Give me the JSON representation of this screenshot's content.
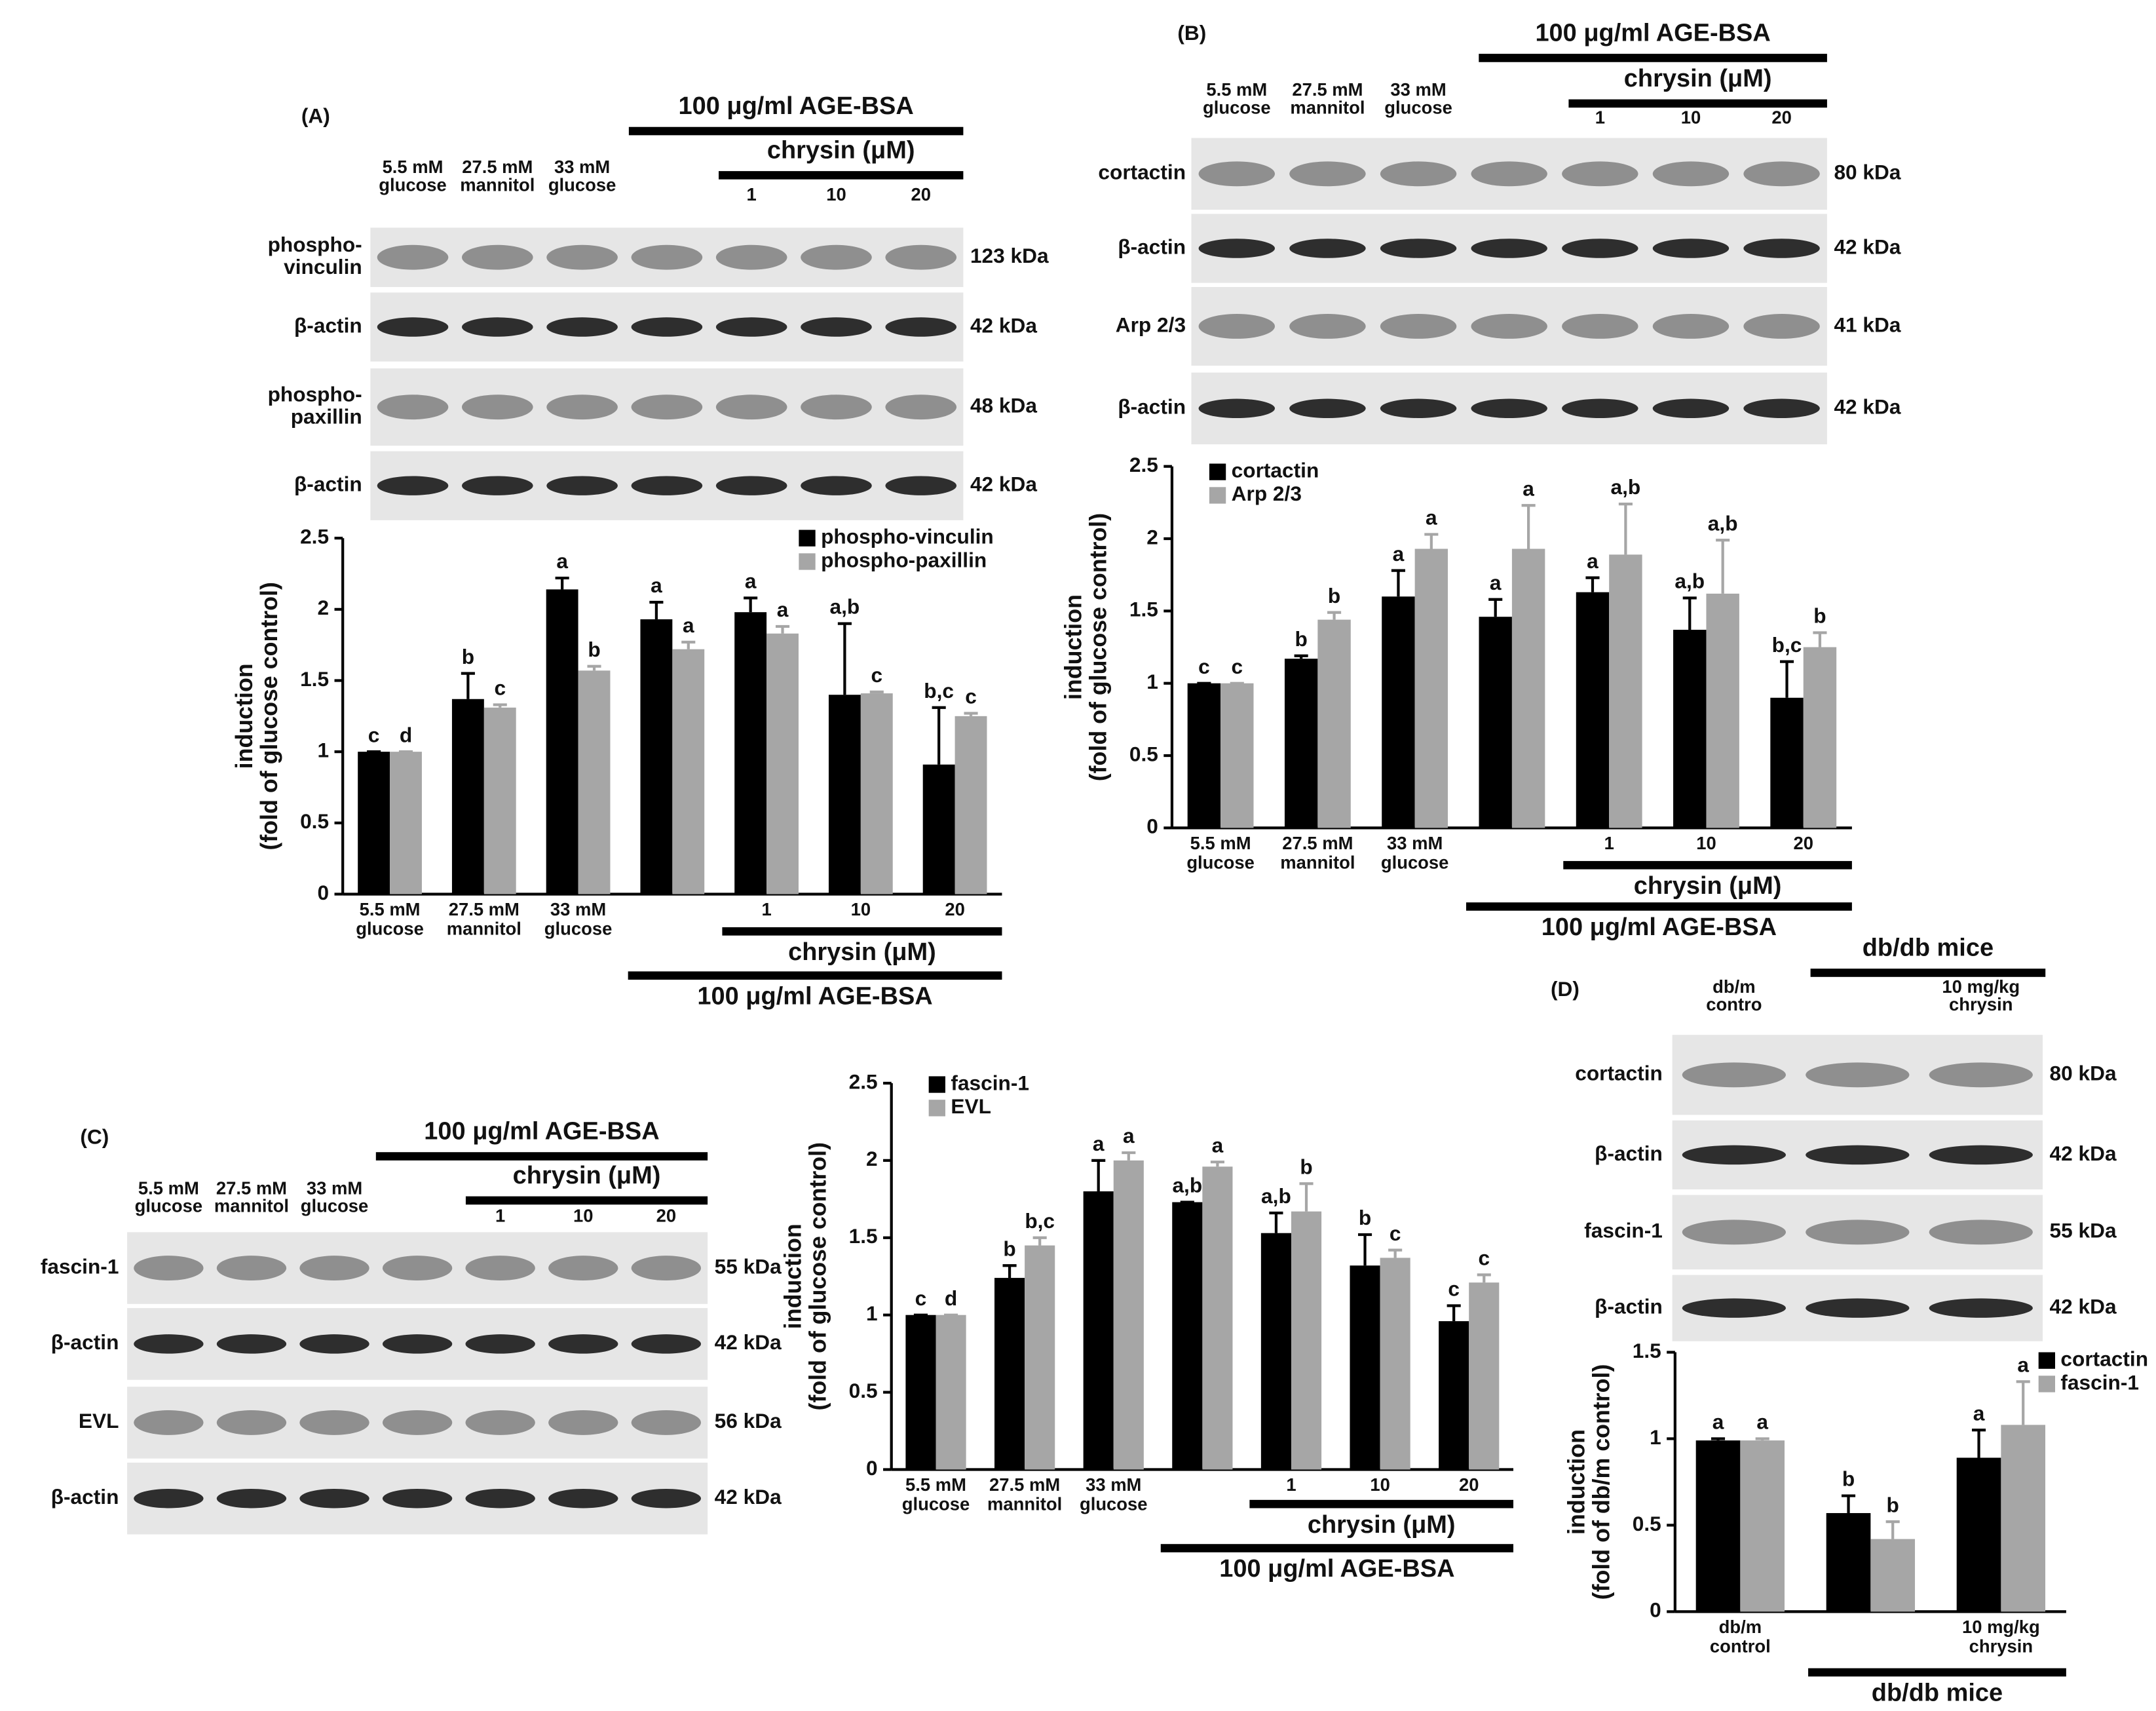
{
  "chart_data": [
    {
      "type": "bar",
      "ylabel": [
        "induction",
        "(fold of glucose control)"
      ],
      "categories": [
        [
          "5.5 mM",
          "glucose"
        ],
        [
          "27.5 mM",
          "mannitol"
        ],
        [
          "33 mM",
          "glucose"
        ],
        null,
        [
          "1"
        ],
        [
          "10"
        ],
        [
          "20"
        ]
      ],
      "brackets": [
        "chrysin (μM)",
        "100 μg/ml AGE-BSA"
      ],
      "ylim": [
        0,
        2.5
      ],
      "yticks": [
        0,
        0.5,
        1,
        1.5,
        2,
        2.5
      ],
      "legend": "upper right",
      "series": [
        {
          "name": "phospho-vinculin",
          "color": "#000000",
          "values": [
            1,
            1.37,
            2.14,
            1.93,
            1.98,
            1.4,
            0.91
          ],
          "errors": [
            0,
            0.18,
            0.08,
            0.12,
            0.1,
            0.5,
            0.4
          ],
          "letters": [
            "c",
            "b",
            "a",
            "a",
            "a",
            "a,b",
            "b,c"
          ]
        },
        {
          "name": "phospho-paxillin",
          "color": "#a6a6a6",
          "values": [
            1,
            1.31,
            1.57,
            1.72,
            1.83,
            1.41,
            1.25
          ],
          "errors": [
            0,
            0.02,
            0.03,
            0.05,
            0.05,
            0.01,
            0.02
          ],
          "letters": [
            "d",
            "c",
            "b",
            "a",
            "a",
            "c",
            "c"
          ]
        }
      ]
    },
    {
      "type": "bar",
      "ylabel": [
        "induction",
        "(fold of glucose control)"
      ],
      "categories": [
        [
          "5.5 mM",
          "glucose"
        ],
        [
          "27.5 mM",
          "mannitol"
        ],
        [
          "33 mM",
          "glucose"
        ],
        null,
        [
          "1"
        ],
        [
          "10"
        ],
        [
          "20"
        ]
      ],
      "brackets": [
        "chrysin (μM)",
        "100 μg/ml AGE-BSA"
      ],
      "ylim": [
        0,
        2.5
      ],
      "yticks": [
        0,
        0.5,
        1,
        1.5,
        2,
        2.5
      ],
      "legend": "upper left",
      "series": [
        {
          "name": "cortactin",
          "color": "#000000",
          "values": [
            1,
            1.17,
            1.6,
            1.46,
            1.63,
            1.37,
            0.9
          ],
          "errors": [
            0,
            0.02,
            0.18,
            0.12,
            0.1,
            0.22,
            0.25
          ],
          "letters": [
            "c",
            "b",
            "a",
            "a",
            "a",
            "a,b",
            "b,c"
          ]
        },
        {
          "name": "Arp 2/3",
          "color": "#a6a6a6",
          "values": [
            1,
            1.44,
            1.93,
            1.93,
            1.89,
            1.62,
            1.25
          ],
          "errors": [
            0,
            0.05,
            0.1,
            0.3,
            0.35,
            0.37,
            0.1
          ],
          "letters": [
            "c",
            "b",
            "a",
            "a",
            "a,b",
            "a,b",
            "b"
          ]
        }
      ]
    },
    {
      "type": "bar",
      "ylabel": [
        "induction",
        "(fold of glucose control)"
      ],
      "categories": [
        [
          "5.5 mM",
          "glucose"
        ],
        [
          "27.5 mM",
          "mannitol"
        ],
        [
          "33 mM",
          "glucose"
        ],
        null,
        [
          "1"
        ],
        [
          "10"
        ],
        [
          "20"
        ]
      ],
      "brackets": [
        "chrysin (μM)",
        "100 μg/ml AGE-BSA"
      ],
      "ylim": [
        0,
        2.5
      ],
      "yticks": [
        0,
        0.5,
        1,
        1.5,
        2,
        2.5
      ],
      "legend": "upper left",
      "series": [
        {
          "name": "fascin-1",
          "color": "#000000",
          "values": [
            1,
            1.24,
            1.8,
            1.73,
            1.53,
            1.32,
            0.96
          ],
          "errors": [
            0,
            0.08,
            0.2,
            0,
            0.13,
            0.2,
            0.1
          ],
          "letters": [
            "c",
            "b",
            "a",
            "a,b",
            "a,b",
            "b",
            "c"
          ]
        },
        {
          "name": "EVL",
          "color": "#a6a6a6",
          "values": [
            1,
            1.45,
            2.0,
            1.96,
            1.67,
            1.37,
            1.21
          ],
          "errors": [
            0,
            0.05,
            0.05,
            0.03,
            0.18,
            0.05,
            0.05
          ],
          "letters": [
            "d",
            "b,c",
            "a",
            "a",
            "b",
            "c",
            "c"
          ]
        }
      ]
    },
    {
      "type": "bar",
      "ylabel": [
        "induction",
        "(fold of db/m control)"
      ],
      "categories": [
        [
          "db/m",
          "control"
        ],
        null,
        [
          "10 mg/kg",
          "chrysin"
        ]
      ],
      "brackets": [
        "db/db mice"
      ],
      "ylim": [
        0,
        1.5
      ],
      "yticks": [
        0,
        0.5,
        1,
        1.5
      ],
      "legend": "upper right",
      "series": [
        {
          "name": "cortactin",
          "color": "#000000",
          "values": [
            0.99,
            0.57,
            0.89
          ],
          "errors": [
            0.01,
            0.1,
            0.16
          ],
          "letters": [
            "a",
            "b",
            "a"
          ]
        },
        {
          "name": "fascin-1",
          "color": "#a6a6a6",
          "values": [
            0.99,
            0.42,
            1.08
          ],
          "errors": [
            0.01,
            0.1,
            0.25
          ],
          "letters": [
            "a",
            "b",
            "a"
          ]
        }
      ]
    }
  ],
  "blots": [
    {
      "panel": "(A)",
      "headers": [
        "100 μg/ml AGE-BSA",
        "chrysin (μM)"
      ],
      "lanes": [
        [
          "5.5 mM",
          "glucose"
        ],
        [
          "27.5 mM",
          "mannitol"
        ],
        [
          "33 mM",
          "glucose"
        ],
        null,
        [
          "1"
        ],
        [
          "10"
        ],
        [
          "20"
        ]
      ],
      "rows": [
        {
          "name": [
            "phospho-",
            "vinculin"
          ],
          "size": "123 kDa"
        },
        {
          "name": [
            "β-actin"
          ],
          "size": "42 kDa"
        },
        {
          "name": [
            "phospho-",
            "paxillin"
          ],
          "size": "48 kDa"
        },
        {
          "name": [
            "β-actin"
          ],
          "size": "42 kDa"
        }
      ]
    },
    {
      "panel": "(B)",
      "headers": [
        "100 μg/ml AGE-BSA",
        "chrysin (μM)"
      ],
      "lanes": [
        [
          "5.5 mM",
          "glucose"
        ],
        [
          "27.5 mM",
          "mannitol"
        ],
        [
          "33 mM",
          "glucose"
        ],
        null,
        [
          "1"
        ],
        [
          "10"
        ],
        [
          "20"
        ]
      ],
      "rows": [
        {
          "name": [
            "cortactin"
          ],
          "size": "80 kDa"
        },
        {
          "name": [
            "β-actin"
          ],
          "size": "42 kDa"
        },
        {
          "name": [
            "Arp 2/3"
          ],
          "size": "41 kDa"
        },
        {
          "name": [
            "β-actin"
          ],
          "size": "42 kDa"
        }
      ]
    },
    {
      "panel": "(C)",
      "headers": [
        "100 μg/ml AGE-BSA",
        "chrysin (μM)"
      ],
      "lanes": [
        [
          "5.5 mM",
          "glucose"
        ],
        [
          "27.5 mM",
          "mannitol"
        ],
        [
          "33 mM",
          "glucose"
        ],
        null,
        [
          "1"
        ],
        [
          "10"
        ],
        [
          "20"
        ]
      ],
      "rows": [
        {
          "name": [
            "fascin-1"
          ],
          "size": "55 kDa"
        },
        {
          "name": [
            "β-actin"
          ],
          "size": "42 kDa"
        },
        {
          "name": [
            "EVL"
          ],
          "size": "56 kDa"
        },
        {
          "name": [
            "β-actin"
          ],
          "size": "42 kDa"
        }
      ]
    },
    {
      "panel": "(D)",
      "headers": [
        "db/db mice"
      ],
      "lanes": [
        [
          "db/m",
          "contro"
        ],
        null,
        [
          "10 mg/kg",
          "chrysin"
        ]
      ],
      "rows": [
        {
          "name": [
            "cortactin"
          ],
          "size": "80 kDa"
        },
        {
          "name": [
            "β-actin"
          ],
          "size": "42 kDa"
        },
        {
          "name": [
            "fascin-1"
          ],
          "size": "55 kDa"
        },
        {
          "name": [
            "β-actin"
          ],
          "size": "42 kDa"
        }
      ]
    }
  ]
}
